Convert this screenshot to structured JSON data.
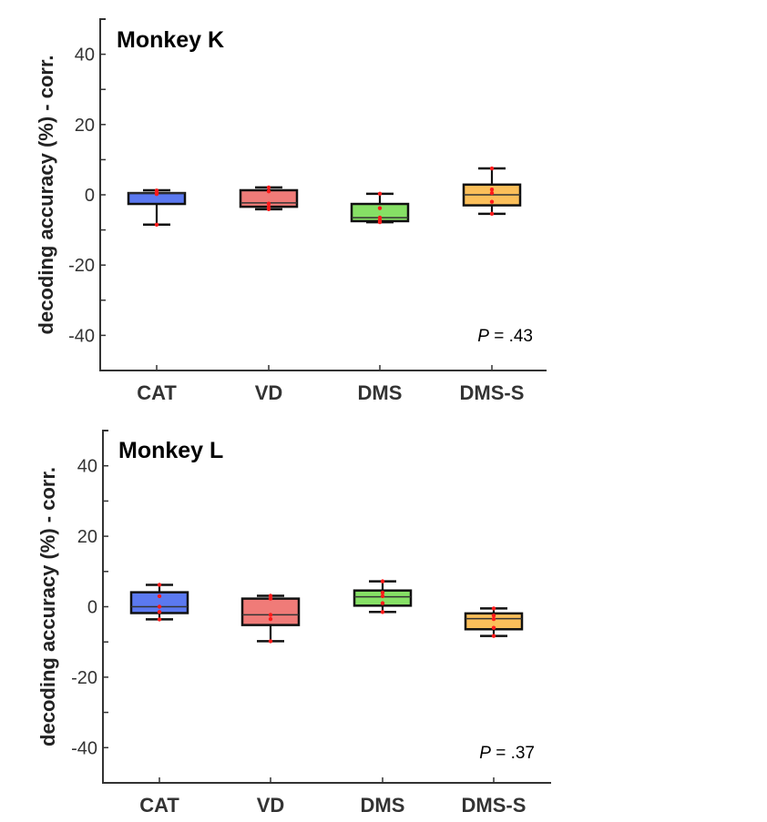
{
  "chart_data": [
    {
      "type": "box",
      "title": "Monkey K",
      "xlabel": "",
      "ylabel": "decoding accuracy (%) - corr.",
      "ylim": [
        -50,
        50
      ],
      "yticks": [
        -40,
        -20,
        0,
        20,
        40
      ],
      "ytick_labels": [
        "-40",
        "-20",
        "0",
        "20",
        "40"
      ],
      "categories": [
        "CAT",
        "VD",
        "DMS",
        "DMS-S"
      ],
      "annotation": {
        "italic": "P",
        "text": " = .43"
      },
      "grid": false,
      "series": [
        {
          "name": "CAT",
          "color": "#5b79f0",
          "whisker_low": -8.5,
          "q1": -2.6,
          "median": 0.5,
          "q3": 0.5,
          "whisker_high": 1.3,
          "points": [
            1.2,
            0.6,
            0.2,
            -8.5
          ]
        },
        {
          "name": "VD",
          "color": "#f07b78",
          "whisker_low": -4.1,
          "q1": -3.4,
          "median": -2.3,
          "q3": 1.3,
          "whisker_high": 2.1,
          "points": [
            2.1,
            1.0,
            -2.5,
            -3.5,
            -4.1
          ]
        },
        {
          "name": "DMS",
          "color": "#86e065",
          "whisker_low": -7.8,
          "q1": -7.5,
          "median": -6.5,
          "q3": -2.6,
          "whisker_high": 0.3,
          "points": [
            0.3,
            -3.8,
            -6.5,
            -7.2,
            -7.8
          ]
        },
        {
          "name": "DMS-S",
          "color": "#fbbf5a",
          "whisker_low": -5.4,
          "q1": -3.0,
          "median": 0.0,
          "q3": 2.9,
          "whisker_high": 7.5,
          "points": [
            7.5,
            1.5,
            0.5,
            -2.0,
            -5.4
          ]
        }
      ]
    },
    {
      "type": "box",
      "title": "Monkey L",
      "xlabel": "",
      "ylabel": "decoding accuracy (%) - corr.",
      "ylim": [
        -50,
        50
      ],
      "yticks": [
        -40,
        -20,
        0,
        20,
        40
      ],
      "ytick_labels": [
        "-40",
        "-20",
        "0",
        "20",
        "40"
      ],
      "categories": [
        "CAT",
        "VD",
        "DMS",
        "DMS-S"
      ],
      "annotation": {
        "italic": "P",
        "text": " = .37"
      },
      "grid": false,
      "series": [
        {
          "name": "CAT",
          "color": "#5b79f0",
          "whisker_low": -3.6,
          "q1": -1.8,
          "median": 0.0,
          "q3": 4.1,
          "whisker_high": 6.2,
          "points": [
            6.2,
            3.0,
            0.0,
            -1.5,
            -3.6
          ]
        },
        {
          "name": "VD",
          "color": "#f07b78",
          "whisker_low": -9.8,
          "q1": -5.2,
          "median": -2.3,
          "q3": 2.3,
          "whisker_high": 3.1,
          "points": [
            3.1,
            2.3,
            -2.3,
            -3.5,
            -9.8
          ]
        },
        {
          "name": "DMS",
          "color": "#86e065",
          "whisker_low": -1.5,
          "q1": 0.3,
          "median": 2.8,
          "q3": 4.6,
          "whisker_high": 7.2,
          "points": [
            7.2,
            4.0,
            3.0,
            1.0,
            -1.5
          ]
        },
        {
          "name": "DMS-S",
          "color": "#fbbf5a",
          "whisker_low": -8.3,
          "q1": -6.4,
          "median": -3.4,
          "q3": -1.9,
          "whisker_high": -0.5,
          "points": [
            -0.5,
            -2.5,
            -3.5,
            -6.0,
            -8.3
          ]
        }
      ]
    }
  ]
}
